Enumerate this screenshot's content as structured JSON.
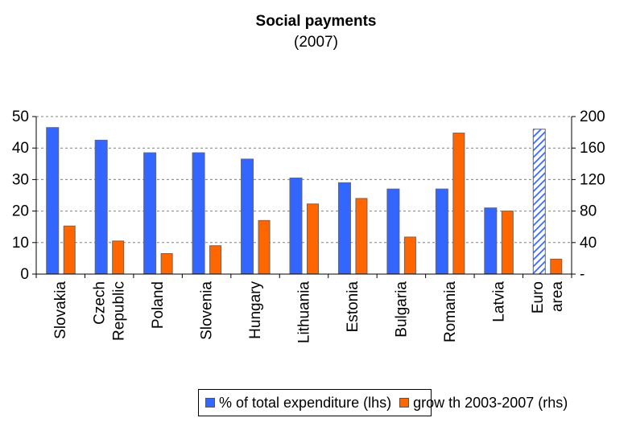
{
  "chart_data": {
    "type": "bar",
    "title": "Social payments",
    "subtitle": "(2007)",
    "categories": [
      [
        "Slovakia"
      ],
      [
        "Czech",
        "Republic"
      ],
      [
        "Poland"
      ],
      [
        "Slovenia"
      ],
      [
        "Hungary"
      ],
      [
        "Lithuania"
      ],
      [
        "Estonia"
      ],
      [
        "Bulgaria"
      ],
      [
        "Romania"
      ],
      [
        "Latvia"
      ],
      [
        "Euro",
        "area"
      ]
    ],
    "series": [
      {
        "name": "% of total expenditure (lhs)",
        "axis": "left",
        "color": "#3366ff",
        "values": [
          46.5,
          42.5,
          38.5,
          38.5,
          36.5,
          30.5,
          29,
          27,
          27,
          21,
          46
        ],
        "hatched_categories": [
          "Euro area"
        ]
      },
      {
        "name": "grow th 2003-2007 (rhs)",
        "axis": "right",
        "color": "#ff6600",
        "values": [
          61,
          42,
          26,
          36,
          68,
          89,
          96,
          47,
          179,
          80,
          19
        ]
      }
    ],
    "left_axis": {
      "ylim": [
        0,
        50
      ],
      "ticks": [
        "0",
        "10",
        "20",
        "30",
        "40",
        "50"
      ]
    },
    "right_axis": {
      "ylim": [
        0,
        200
      ],
      "ticks": [
        "-",
        "40",
        "80",
        "120",
        "160",
        "200"
      ]
    },
    "grid": true,
    "legend_position": "bottom"
  }
}
